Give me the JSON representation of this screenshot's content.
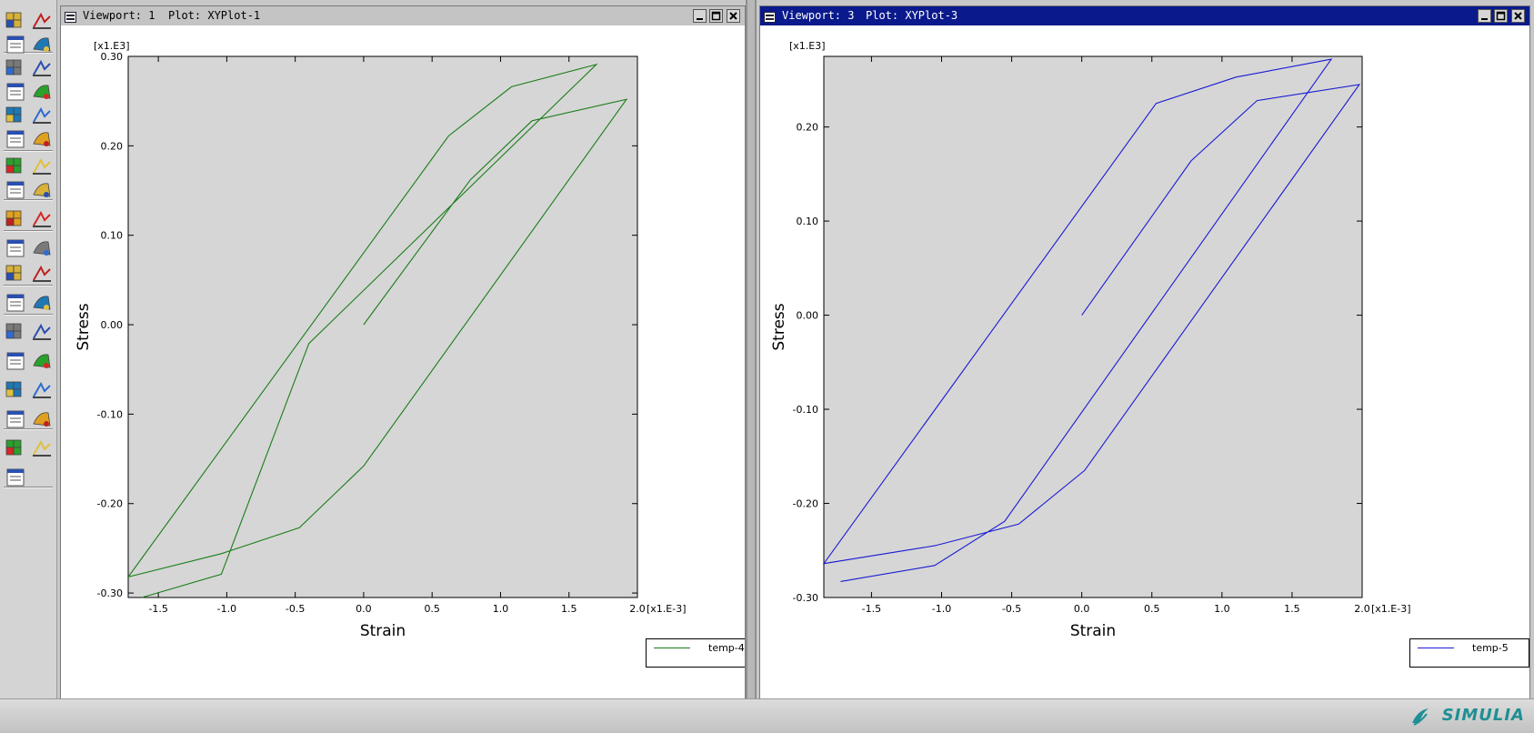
{
  "viewports": [
    {
      "title": "Viewport: 1",
      "plot": "Plot: XYPlot-1",
      "active": false,
      "chart_data": {
        "type": "line",
        "xlabel": "Strain",
        "ylabel": "Stress",
        "x_multiplier": "[x1.E-3]",
        "y_multiplier": "[x1.E3]",
        "xlim": [
          -1.72,
          2.0
        ],
        "ylim": [
          -0.305,
          0.3
        ],
        "x_ticks": [
          -1.5,
          -1.0,
          -0.5,
          0.0,
          0.5,
          1.0,
          1.5,
          2.0
        ],
        "x_tick_labels": [
          "-1.5",
          "-1.0",
          "-0.5",
          "0.0",
          "0.5",
          "1.0",
          "1.5",
          "2.0"
        ],
        "y_ticks": [
          -0.3,
          -0.2,
          -0.1,
          0.0,
          0.1,
          0.2,
          0.3
        ],
        "y_tick_labels": [
          "-0.30",
          "-0.20",
          "-0.10",
          "0.00",
          "0.10",
          "0.20",
          "0.30"
        ],
        "grid": false,
        "legend": "bottom-right",
        "series": [
          {
            "name": "temp-4",
            "color": "#1a7d1a",
            "x": [
              0.0,
              0.78,
              1.23,
              1.92,
              0.0,
              -0.47,
              -1.04,
              -1.72,
              0.62,
              1.08,
              1.7,
              -0.4,
              -1.04,
              -1.62
            ],
            "y": [
              0.0,
              0.162,
              0.228,
              0.252,
              -0.158,
              -0.227,
              -0.256,
              -0.282,
              0.211,
              0.266,
              0.291,
              -0.021,
              -0.279,
              -0.305
            ]
          }
        ]
      }
    },
    {
      "title": "Viewport: 3",
      "plot": "Plot: XYPlot-3",
      "active": true,
      "chart_data": {
        "type": "line",
        "xlabel": "Strain",
        "ylabel": "Stress",
        "x_multiplier": "[x1.E-3]",
        "y_multiplier": "[x1.E3]",
        "xlim": [
          -1.84,
          2.0
        ],
        "ylim": [
          -0.3,
          0.275
        ],
        "x_ticks": [
          -1.5,
          -1.0,
          -0.5,
          0.0,
          0.5,
          1.0,
          1.5,
          2.0
        ],
        "x_tick_labels": [
          "-1.5",
          "-1.0",
          "-0.5",
          "0.0",
          "0.5",
          "1.0",
          "1.5",
          "2.0"
        ],
        "y_ticks": [
          -0.3,
          -0.2,
          -0.1,
          0.0,
          0.1,
          0.2
        ],
        "y_tick_labels": [
          "-0.30",
          "-0.20",
          "-0.10",
          "0.00",
          "0.10",
          "0.20"
        ],
        "grid": false,
        "legend": "bottom-right",
        "series": [
          {
            "name": "temp-5",
            "color": "#1a1ad4",
            "x": [
              0.0,
              0.78,
              1.25,
              1.98,
              0.02,
              -0.45,
              -1.05,
              -1.84,
              0.53,
              1.1,
              1.78,
              -0.55,
              -1.05,
              -1.72
            ],
            "y": [
              0.0,
              0.164,
              0.228,
              0.245,
              -0.165,
              -0.222,
              -0.245,
              -0.264,
              0.225,
              0.253,
              0.272,
              -0.219,
              -0.266,
              -0.283
            ]
          }
        ]
      }
    }
  ],
  "branding": {
    "name": "SIMULIA"
  },
  "toolbox": {
    "tools": [
      "xy-data-manager-icon",
      "xy-plot-icon",
      "probe-icon",
      "query-icon",
      "create-xy-plot-icon",
      "xy-options-icon",
      "contour-icon",
      "contour-options-icon",
      "symbol-icon",
      "symbol-options-icon",
      "material-orientation-icon",
      "mo-options-icon",
      "common-options-icon",
      "superimpose-options-icon",
      "animate-time-icon",
      "animate-scale-icon",
      "animate-harmonic-icon",
      "animation-options-icon",
      "view-cut-icon",
      "view-cut-manager-icon",
      "create-xy-data-icon",
      "xy-data-manager-list-icon",
      "path-icon",
      "path-manager-icon",
      "deformed-shape-icon",
      "overlay-icon",
      "color-contour-icon",
      "legend-options-icon",
      "free-body-icon",
      "free-body-manager-icon",
      "stream-icon",
      "stream-manager-icon",
      "display-group-icon",
      "display-group-manager-icon",
      "paint-brush-icon"
    ]
  }
}
